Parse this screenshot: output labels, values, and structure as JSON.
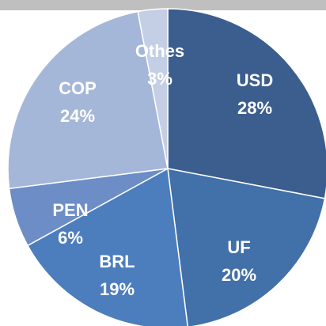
{
  "chart_data": {
    "type": "pie",
    "categories": [
      "USD",
      "UF",
      "BRL",
      "PEN",
      "COP",
      "Othes"
    ],
    "values": [
      28,
      20,
      19,
      6,
      24,
      3
    ],
    "value_labels": [
      "28%",
      "20%",
      "19%",
      "6%",
      "24%",
      "3%"
    ],
    "colors": [
      "#3b5e8e",
      "#4270a8",
      "#4c7dbd",
      "#6d8dc7",
      "#a5b7d9",
      "#c4cfe6"
    ]
  }
}
